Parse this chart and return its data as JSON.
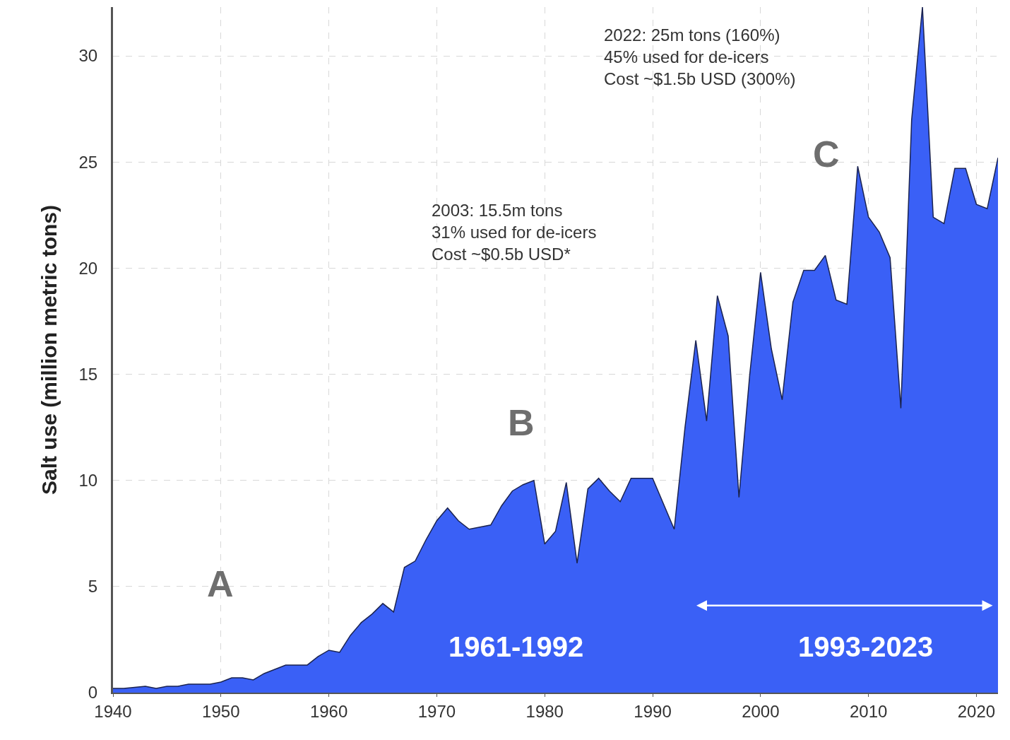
{
  "chart_data": {
    "type": "area",
    "ylabel": "Salt use (million metric tons)",
    "x": [
      1940,
      1941,
      1942,
      1943,
      1944,
      1945,
      1946,
      1947,
      1948,
      1949,
      1950,
      1951,
      1952,
      1953,
      1954,
      1955,
      1956,
      1957,
      1958,
      1959,
      1960,
      1961,
      1962,
      1963,
      1964,
      1965,
      1966,
      1967,
      1968,
      1969,
      1970,
      1971,
      1972,
      1973,
      1974,
      1975,
      1976,
      1977,
      1978,
      1979,
      1980,
      1981,
      1982,
      1983,
      1984,
      1985,
      1986,
      1987,
      1988,
      1989,
      1990,
      1991,
      1992,
      1993,
      1994,
      1995,
      1996,
      1997,
      1998,
      1999,
      2000,
      2001,
      2002,
      2003,
      2004,
      2005,
      2006,
      2007,
      2008,
      2009,
      2010,
      2011,
      2012,
      2013,
      2014,
      2015,
      2016,
      2017,
      2018,
      2019,
      2020,
      2021,
      2022
    ],
    "series": [
      {
        "color": "#3a60f6",
        "values": [
          0.2,
          0.2,
          0.25,
          0.3,
          0.2,
          0.3,
          0.3,
          0.4,
          0.4,
          0.4,
          0.5,
          0.7,
          0.7,
          0.6,
          0.9,
          1.1,
          1.3,
          1.3,
          1.3,
          1.7,
          2.0,
          1.9,
          2.7,
          3.3,
          3.7,
          4.2,
          3.8,
          5.9,
          6.2,
          7.2,
          8.1,
          8.7,
          8.1,
          7.7,
          7.8,
          7.9,
          8.8,
          9.5,
          9.8,
          10.0,
          7.0,
          7.6,
          9.9,
          6.1,
          9.6,
          10.1,
          9.5,
          9.0,
          10.1,
          10.1,
          10.1,
          8.9,
          7.7,
          12.5,
          16.6,
          12.8,
          18.7,
          16.8,
          9.2,
          15.0,
          19.8,
          16.2,
          13.8,
          18.4,
          19.9,
          19.9,
          20.6,
          18.5,
          18.3,
          24.8,
          22.4,
          21.7,
          20.5,
          13.4,
          27.0,
          32.3,
          22.4,
          22.1,
          24.7,
          24.7,
          23.0,
          22.8,
          25.2
        ]
      }
    ],
    "xlim": [
      1940,
      2022
    ],
    "xticks": [
      1940,
      1950,
      1960,
      1970,
      1980,
      1990,
      2000,
      2010,
      2020
    ],
    "ylim": [
      0,
      32.3
    ],
    "yticks": [
      0,
      5,
      10,
      15,
      20,
      25,
      30
    ],
    "grid": true,
    "annotations": [
      "2022: 25m tons (160%)\n45% used for de-icers\nCost ~$1.5b USD (300%)",
      "2003: 15.5m tons\n31% used for de-icers\nCost ~$0.5b USD*",
      "A",
      "B",
      "C",
      "1961-1992",
      "1993-2023"
    ]
  }
}
